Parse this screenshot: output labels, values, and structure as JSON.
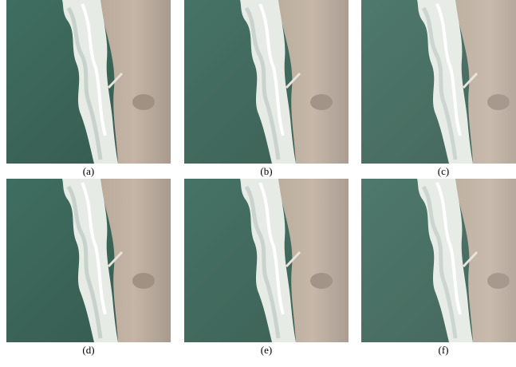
{
  "figure": {
    "panels": [
      {
        "label": "(a)"
      },
      {
        "label": "(b)"
      },
      {
        "label": "(c)"
      },
      {
        "label": "(d)"
      },
      {
        "label": "(e)"
      },
      {
        "label": "(f)"
      }
    ]
  }
}
